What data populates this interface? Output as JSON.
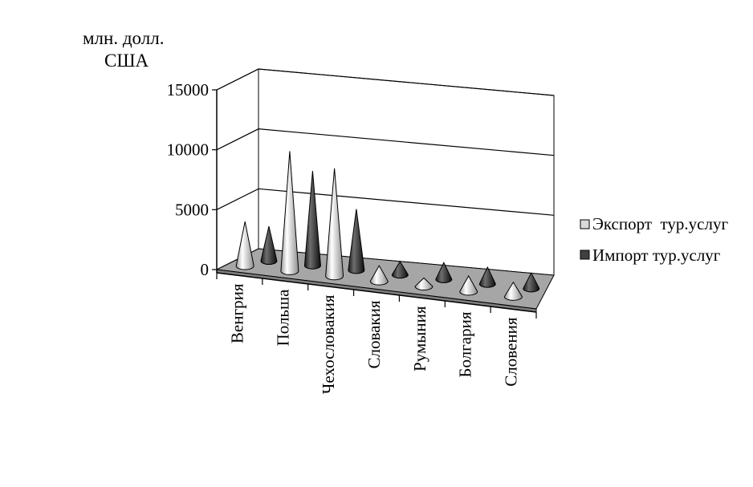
{
  "chart_data": {
    "type": "bar",
    "variant": "3d-cone",
    "unit_label_line1": "млн. долл.",
    "unit_label_line2": "США",
    "ylim": [
      0,
      15000
    ],
    "yticks": [
      "0",
      "5000",
      "10000",
      "15000"
    ],
    "ytick_values": [
      0,
      5000,
      10000,
      15000
    ],
    "grid": true,
    "legend_position": "right",
    "categories": [
      "Венгрия",
      "Польша",
      "Чехословакия",
      "Словакия",
      "Румыния",
      "Болгария",
      "Словения"
    ],
    "series": [
      {
        "name": "Экспорт  тур.услуг",
        "color": "#d9d9d9",
        "values": [
          3700,
          10000,
          9000,
          1300,
          700,
          1300,
          1200
        ]
      },
      {
        "name": "Импорт тур.услуг",
        "color": "#404040",
        "values": [
          2900,
          7900,
          5100,
          1100,
          1400,
          1400,
          1300
        ]
      }
    ],
    "colors": {
      "floor": "#a6a6a6",
      "grid": "#000000"
    }
  }
}
